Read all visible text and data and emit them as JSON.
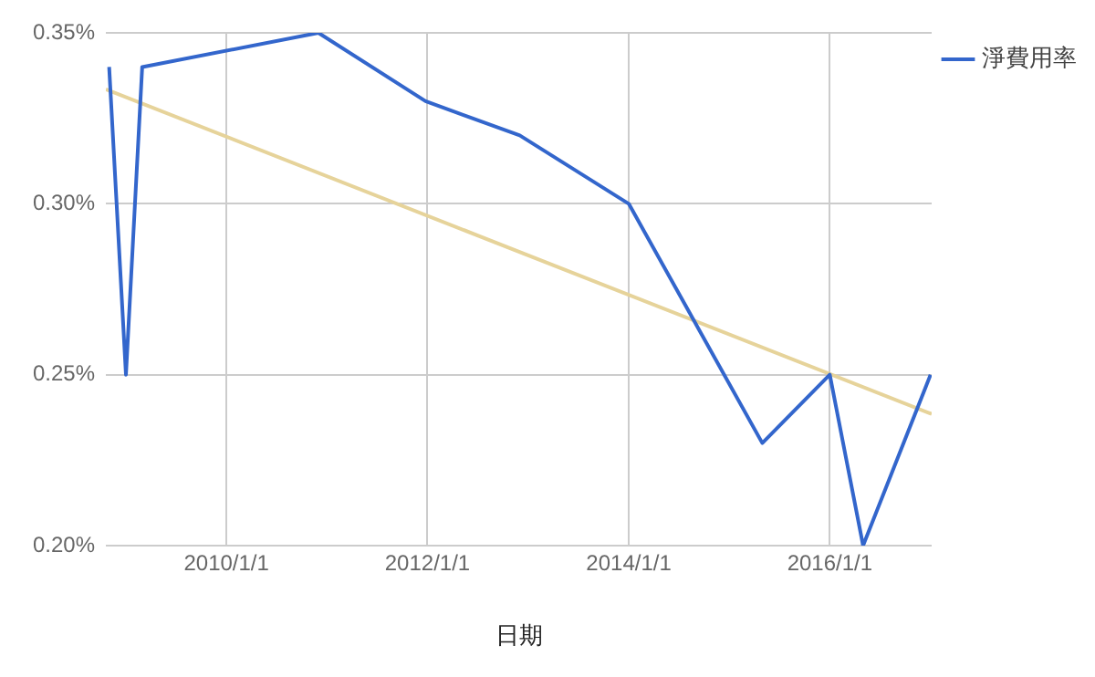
{
  "chart_data": {
    "type": "line",
    "xlabel": "日期",
    "x": [
      "2008-11-01",
      "2009-01-01",
      "2009-03-01",
      "2010-12-01",
      "2011-12-25",
      "2012-12-01",
      "2014-01-01",
      "2015-05-01",
      "2016-01-01",
      "2016-05-01",
      "2017-01-01"
    ],
    "series": [
      {
        "name": "淨費用率",
        "color": "#3366cc",
        "values": [
          0.34,
          0.25,
          0.34,
          0.35,
          0.33,
          0.32,
          0.3,
          0.23,
          0.25,
          0.2,
          0.25
        ]
      },
      {
        "type": "line",
        "color": "#e6d39a",
        "x": [
          "2008-10-20",
          "2017-01-05"
        ],
        "values": [
          0.3335,
          0.2385
        ]
      }
    ],
    "xlim": [
      "2008-10-20",
      "2017-01-05"
    ],
    "xticks": [
      {
        "value": "2010-01-01",
        "label": "2010/1/1"
      },
      {
        "value": "2012-01-01",
        "label": "2012/1/1"
      },
      {
        "value": "2014-01-01",
        "label": "2014/1/1"
      },
      {
        "value": "2016-01-01",
        "label": "2016/1/1"
      }
    ],
    "ylim": [
      0.2,
      0.35
    ],
    "yticks": [
      {
        "value": 0.2,
        "label": "0.20%"
      },
      {
        "value": 0.25,
        "label": "0.25%"
      },
      {
        "value": 0.3,
        "label": "0.30%"
      },
      {
        "value": 0.35,
        "label": "0.35%"
      }
    ],
    "grid": true,
    "legend": "top right",
    "marker": "none",
    "line_style": "solid"
  }
}
